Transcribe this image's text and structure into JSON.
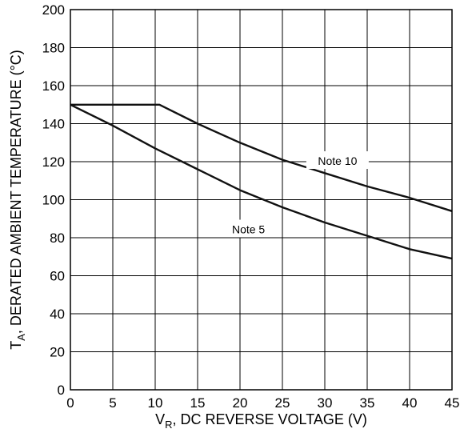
{
  "chart_data": {
    "type": "line",
    "xlabel": {
      "main": "V",
      "sub": "R",
      "rest": ", DC REVERSE VOLTAGE (V)"
    },
    "ylabel": {
      "main": "T",
      "sub": "A",
      "rest": ", DERATED AMBIENT TEMPERATURE (°C)"
    },
    "xlim": [
      0,
      45
    ],
    "ylim": [
      0,
      200
    ],
    "xticks": [
      0,
      5,
      10,
      15,
      20,
      25,
      30,
      35,
      40,
      45
    ],
    "yticks": [
      0,
      20,
      40,
      60,
      80,
      100,
      120,
      140,
      160,
      180,
      200
    ],
    "grid": true,
    "series": [
      {
        "name": "Note 10",
        "x": [
          0,
          10.5,
          15,
          20,
          25,
          30,
          35,
          40,
          45
        ],
        "y": [
          150,
          150,
          140,
          130,
          121,
          114,
          107,
          101,
          94
        ]
      },
      {
        "name": "Note 5",
        "x": [
          0,
          5,
          10,
          15,
          20,
          25,
          30,
          35,
          40,
          45
        ],
        "y": [
          150,
          139,
          127,
          116,
          105,
          96,
          88,
          81,
          74,
          69
        ]
      }
    ],
    "annotations": [
      {
        "text": "Note 10",
        "series": 0,
        "x": 31.5,
        "y": 120
      },
      {
        "text": "Note 5",
        "series": 1,
        "x": 21,
        "y": 84
      }
    ]
  }
}
